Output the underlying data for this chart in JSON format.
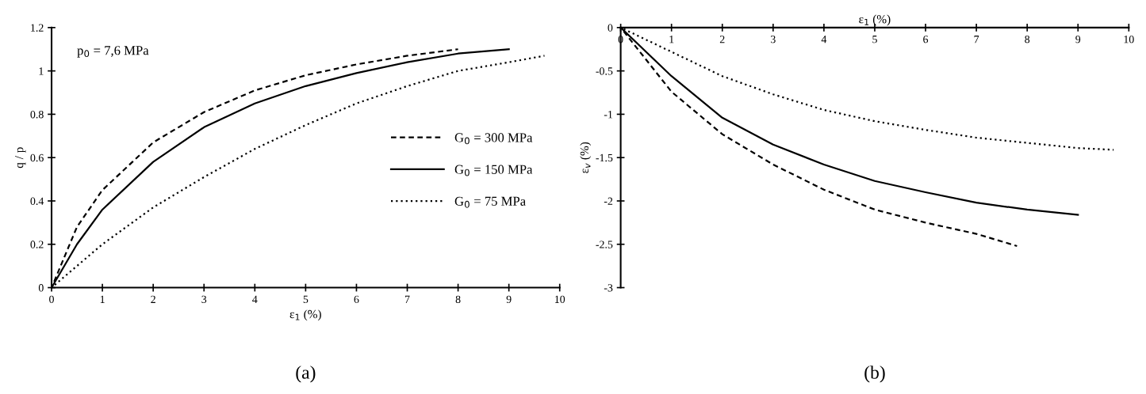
{
  "chart_data": [
    {
      "type": "line",
      "xlabel": "ε$_{1}$ (%)",
      "ylabel": "q / p",
      "annotations": [
        "p$_{0}$ = 7,6 MPa",
        "(a)"
      ],
      "xlim": [
        0,
        10
      ],
      "xticks": [
        0,
        1,
        2,
        3,
        4,
        5,
        6,
        7,
        8,
        9,
        10
      ],
      "ylim": [
        0,
        1.2
      ],
      "yticks": [
        0,
        0.2,
        0.4,
        0.6,
        0.8,
        1,
        1.2
      ],
      "grid": false,
      "legend": "right",
      "marker": "none",
      "series": [
        {
          "name": "G$_{0}$ = 300 MPa",
          "color": "#000000",
          "line_style": "dashed",
          "x": [
            0,
            0.5,
            1,
            2,
            3,
            4,
            5,
            6,
            7,
            8
          ],
          "values": [
            0,
            0.28,
            0.45,
            0.67,
            0.81,
            0.91,
            0.98,
            1.03,
            1.07,
            1.1
          ]
        },
        {
          "name": "G$_{0}$ = 150 MPa",
          "color": "#000000",
          "line_style": "solid",
          "x": [
            0,
            0.5,
            1,
            2,
            3,
            4,
            5,
            6,
            7,
            8,
            9
          ],
          "values": [
            0,
            0.2,
            0.36,
            0.58,
            0.74,
            0.85,
            0.93,
            0.99,
            1.04,
            1.08,
            1.1
          ]
        },
        {
          "name": "G$_{0}$ = 75 MPa",
          "color": "#000000",
          "line_style": "dotted",
          "x": [
            0,
            0.5,
            1,
            2,
            3,
            4,
            5,
            6,
            7,
            8,
            9,
            9.7
          ],
          "values": [
            0,
            0.1,
            0.2,
            0.37,
            0.51,
            0.64,
            0.75,
            0.85,
            0.93,
            1.0,
            1.04,
            1.07
          ]
        }
      ]
    },
    {
      "type": "line",
      "xlabel": "ε$_{1}$ (%)",
      "ylabel": "ε$_{v}$ (%)",
      "annotations": [
        "(b)"
      ],
      "xlim": [
        0,
        10
      ],
      "xticks": [
        0,
        1,
        2,
        3,
        4,
        5,
        6,
        7,
        8,
        9,
        10
      ],
      "ylim": [
        -3,
        0
      ],
      "yticks": [
        -3,
        -2.5,
        -2,
        -1.5,
        -1,
        -0.5,
        0
      ],
      "grid": false,
      "legend": false,
      "marker": "none",
      "series": [
        {
          "color": "#000000",
          "line_style": "dashed",
          "x": [
            0,
            1,
            2,
            3,
            4,
            5,
            6,
            7,
            7.8
          ],
          "values": [
            0,
            -0.74,
            -1.23,
            -1.58,
            -1.87,
            -2.1,
            -2.25,
            -2.38,
            -2.52
          ]
        },
        {
          "color": "#000000",
          "line_style": "solid",
          "x": [
            0,
            1,
            2,
            3,
            4,
            5,
            6,
            7,
            8,
            9
          ],
          "values": [
            0,
            -0.56,
            -1.04,
            -1.35,
            -1.58,
            -1.77,
            -1.9,
            -2.02,
            -2.1,
            -2.16
          ]
        },
        {
          "color": "#000000",
          "line_style": "dotted",
          "x": [
            0,
            1,
            2,
            3,
            4,
            5,
            6,
            7,
            8,
            9,
            9.7
          ],
          "values": [
            0,
            -0.28,
            -0.56,
            -0.77,
            -0.95,
            -1.08,
            -1.18,
            -1.27,
            -1.33,
            -1.39,
            -1.41
          ]
        }
      ]
    }
  ]
}
